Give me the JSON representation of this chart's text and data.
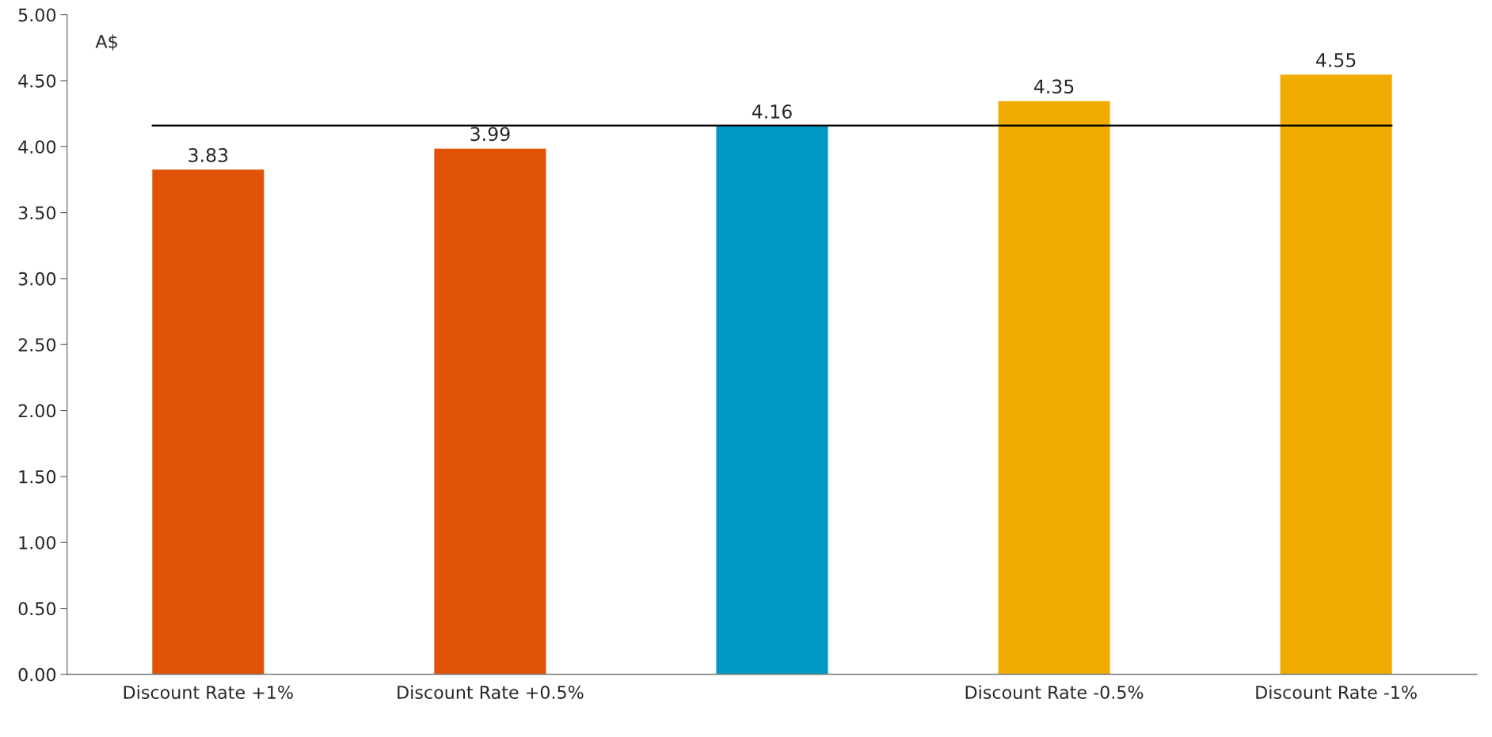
{
  "chart_data": {
    "type": "bar",
    "ylabel": "A$",
    "categories": [
      "Discount Rate +1%",
      "Discount Rate +0.5%",
      null,
      "Discount Rate -0.5%",
      "Discount Rate -1%"
    ],
    "values": [
      3.83,
      3.99,
      4.16,
      4.35,
      4.55
    ],
    "colors": [
      "#e05206",
      "#e05206",
      "#0099c6",
      "#f0ab00",
      "#f0ab00"
    ],
    "data_labels": true,
    "ylim": [
      0,
      5
    ],
    "yticks": [
      {
        "value": 0,
        "label": "0.00"
      },
      {
        "value": 0.5,
        "label": "0.50"
      },
      {
        "value": 1,
        "label": "1.00"
      },
      {
        "value": 1.5,
        "label": "1.50"
      },
      {
        "value": 2,
        "label": "2.00"
      },
      {
        "value": 2.5,
        "label": "2.50"
      },
      {
        "value": 3,
        "label": "3.00"
      },
      {
        "value": 3.5,
        "label": "3.50"
      },
      {
        "value": 4,
        "label": "4.00"
      },
      {
        "value": 4.5,
        "label": "4.50"
      },
      {
        "value": 5,
        "label": "5.00"
      }
    ],
    "ref_lines": [
      {
        "axis": "y",
        "value": 4.16,
        "color": "#000000"
      }
    ],
    "grid": false,
    "legend": false
  }
}
